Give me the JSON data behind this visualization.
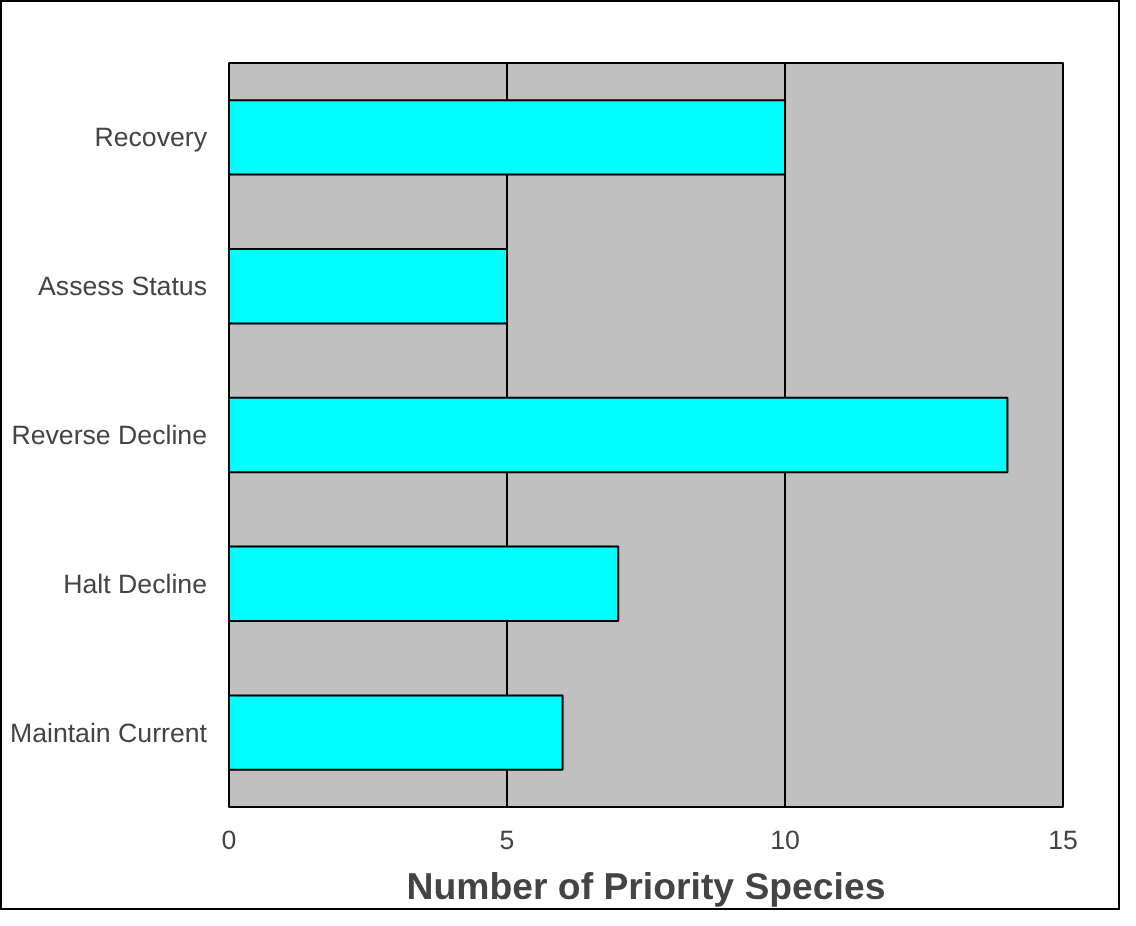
{
  "chart_data": {
    "type": "bar",
    "orientation": "horizontal",
    "xlabel": "Number of Priority Species",
    "categories": [
      "Recovery",
      "Assess Status",
      "Reverse Decline",
      "Halt Decline",
      "Maintain Current"
    ],
    "values": [
      10,
      5,
      14,
      7,
      6
    ],
    "color": "#00ffff",
    "xlim": [
      0,
      15
    ],
    "xticks": [
      0,
      5,
      10,
      15
    ],
    "grid": "x"
  }
}
